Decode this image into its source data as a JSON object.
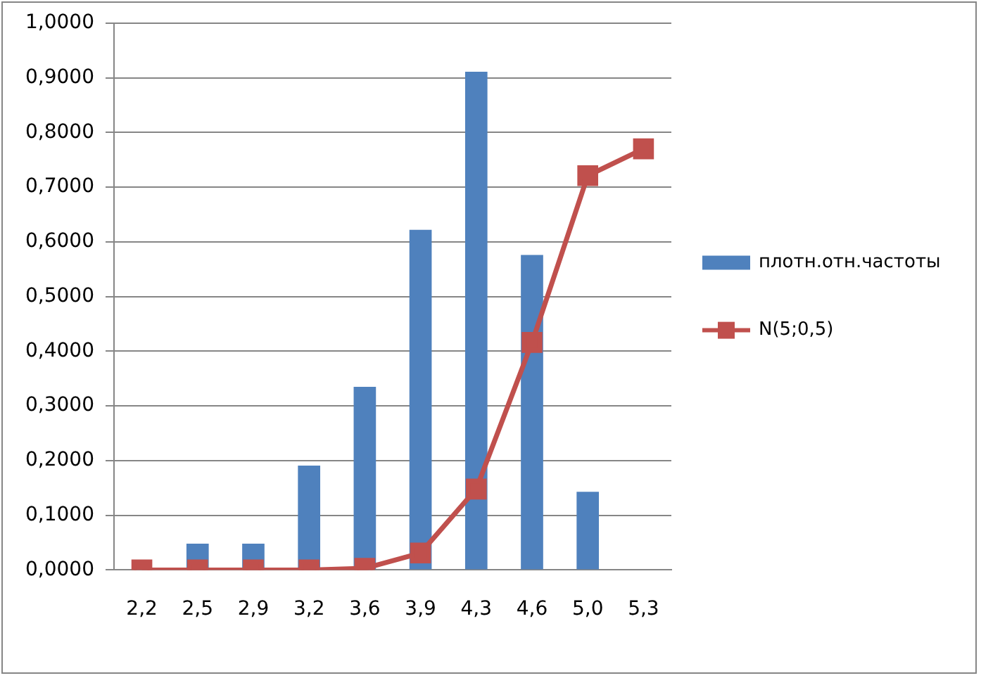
{
  "chart_data": {
    "type": "bar",
    "categories": [
      "2,2",
      "2,5",
      "2,9",
      "3,2",
      "3,6",
      "3,9",
      "4,3",
      "4,6",
      "5,0",
      "5,3"
    ],
    "series": [
      {
        "name": "плотн.отн.частоты",
        "color": "#4f81bd",
        "values": [
          0,
          0.048,
          0.048,
          0.191,
          0.335,
          0.622,
          0.911,
          0.576,
          0.143,
          0
        ]
      },
      {
        "name": "N(5;0,5)",
        "type": "line",
        "color": "#c0504d",
        "marker": "square",
        "line_style": "solid",
        "values": [
          0,
          0,
          0,
          0,
          0.003,
          0.031,
          0.148,
          0.416,
          0.721,
          0.77
        ]
      }
    ],
    "ylim": [
      0,
      1
    ],
    "yticks": [
      {
        "value": 0,
        "label": "0,0000"
      },
      {
        "value": 0.1,
        "label": "0,1000"
      },
      {
        "value": 0.2,
        "label": "0,2000"
      },
      {
        "value": 0.3,
        "label": "0,3000"
      },
      {
        "value": 0.4,
        "label": "0,4000"
      },
      {
        "value": 0.5,
        "label": "0,5000"
      },
      {
        "value": 0.6,
        "label": "0,6000"
      },
      {
        "value": 0.7,
        "label": "0,7000"
      },
      {
        "value": 0.8,
        "label": "0,8000"
      },
      {
        "value": 0.9,
        "label": "0,9000"
      },
      {
        "value": 1,
        "label": "1,0000"
      }
    ],
    "grid": "y",
    "legend": "right"
  }
}
